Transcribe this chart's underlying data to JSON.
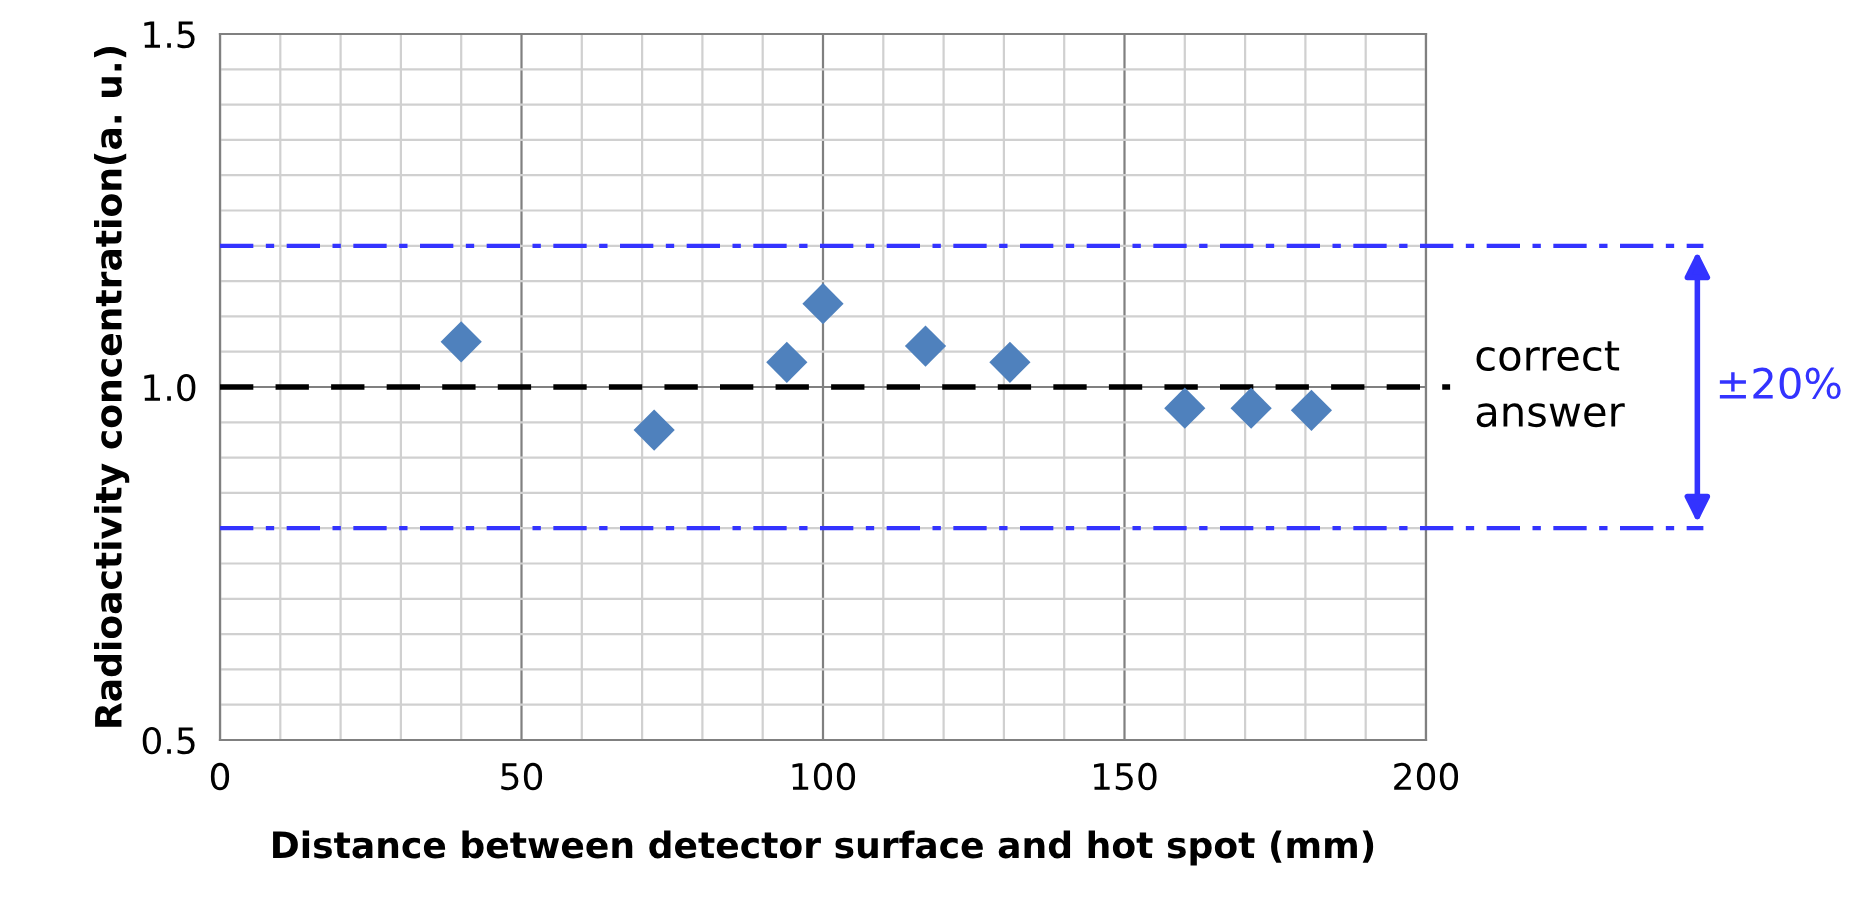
{
  "chart_data": {
    "type": "scatter",
    "xlabel": "Distance between detector surface and hot spot (mm)",
    "ylabel": "Radioactivity concentration(a. u.)",
    "series": [
      {
        "color": "#4f81bd",
        "x": [
          40,
          72,
          94,
          100,
          117,
          131,
          160,
          171,
          181
        ],
        "values": [
          1.064,
          0.939,
          1.035,
          1.118,
          1.058,
          1.035,
          0.97,
          0.97,
          0.967
        ]
      }
    ],
    "marker": "diamond",
    "xlim": [
      0,
      200
    ],
    "ylim": [
      0.5,
      1.5
    ],
    "xticks": [
      0,
      50,
      100,
      150,
      200
    ],
    "yticks": [
      {
        "value": 0.5,
        "label": "0.5"
      },
      {
        "value": 1.0,
        "label": "1.0"
      },
      {
        "value": 1.5,
        "label": "1.5"
      }
    ],
    "grid": true,
    "ref_lines": [
      {
        "axis": "y",
        "value": 1.0,
        "color": "#000000",
        "line_style": "dashed"
      },
      {
        "axis": "y",
        "value": 1.2,
        "color": "#3333ff",
        "line_style": "dashdot"
      },
      {
        "axis": "y",
        "value": 0.8,
        "color": "#3333ff",
        "line_style": "dashdot"
      }
    ],
    "annotations": [
      "correct\nanswer",
      "±20%"
    ]
  }
}
